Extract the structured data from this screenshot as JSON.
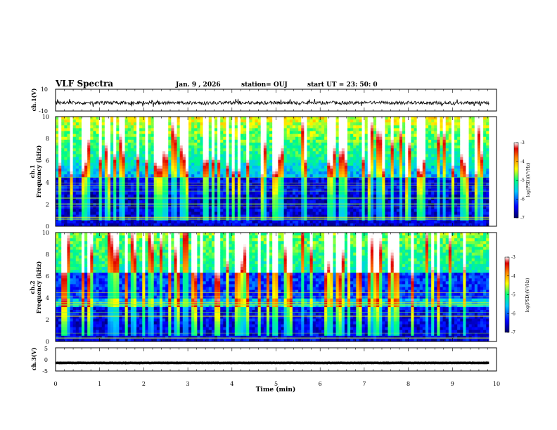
{
  "header": {
    "title": "VLF Spectra",
    "date": "Jan. 9 , 2026",
    "station": "station= OUJ",
    "start": "start UT = 23: 50: 0"
  },
  "chart_data": [
    {
      "type": "line",
      "panel": "ch1-waveform",
      "ylabel": "ch.1(V)",
      "ylim": [
        -10,
        10
      ],
      "y_tick_labels": [
        "10",
        "-10"
      ],
      "xlim": [
        0,
        10
      ],
      "baseline": -2.5,
      "amplitude": 1.5
    },
    {
      "type": "heatmap",
      "panel": "ch1-spectrogram",
      "ylabel_line1": "ch.1",
      "ylabel_line2": "Frequency (kHz)",
      "ylim": [
        0,
        10
      ],
      "y_tick_labels": [
        "0",
        "2",
        "4",
        "6",
        "8",
        "10"
      ],
      "colorbar": {
        "label": "log(PSD)(V²/Hz)",
        "range": [
          -7,
          -3
        ],
        "tick_labels": [
          "-3",
          "-4",
          "-5",
          "-6",
          "-7"
        ]
      }
    },
    {
      "type": "heatmap",
      "panel": "ch2-spectrogram",
      "ylabel_line1": "ch.2",
      "ylabel_line2": "Frequency (kHz)",
      "ylim": [
        0,
        10
      ],
      "y_tick_labels": [
        "0",
        "2",
        "4",
        "6",
        "8",
        "10"
      ],
      "colorbar": {
        "label": "log(PSD)(V²/Hz)",
        "range": [
          -7,
          -3
        ],
        "tick_labels": [
          "-3",
          "-4",
          "-5",
          "-6",
          "-7"
        ]
      }
    },
    {
      "type": "line",
      "panel": "ch3-waveform",
      "ylabel": "ch.3(V)",
      "ylim": [
        -5,
        5
      ],
      "y_tick_labels": [
        "5",
        "0",
        "-5"
      ],
      "xlim": [
        0,
        10
      ],
      "baseline": -1.5,
      "amplitude": 0.15
    }
  ],
  "x_axis": {
    "label": "Time (min)",
    "range": [
      0,
      10
    ],
    "tick_labels": [
      "0",
      "1",
      "2",
      "3",
      "4",
      "5",
      "6",
      "7",
      "8",
      "9",
      "10"
    ],
    "data_end": 9.83
  }
}
